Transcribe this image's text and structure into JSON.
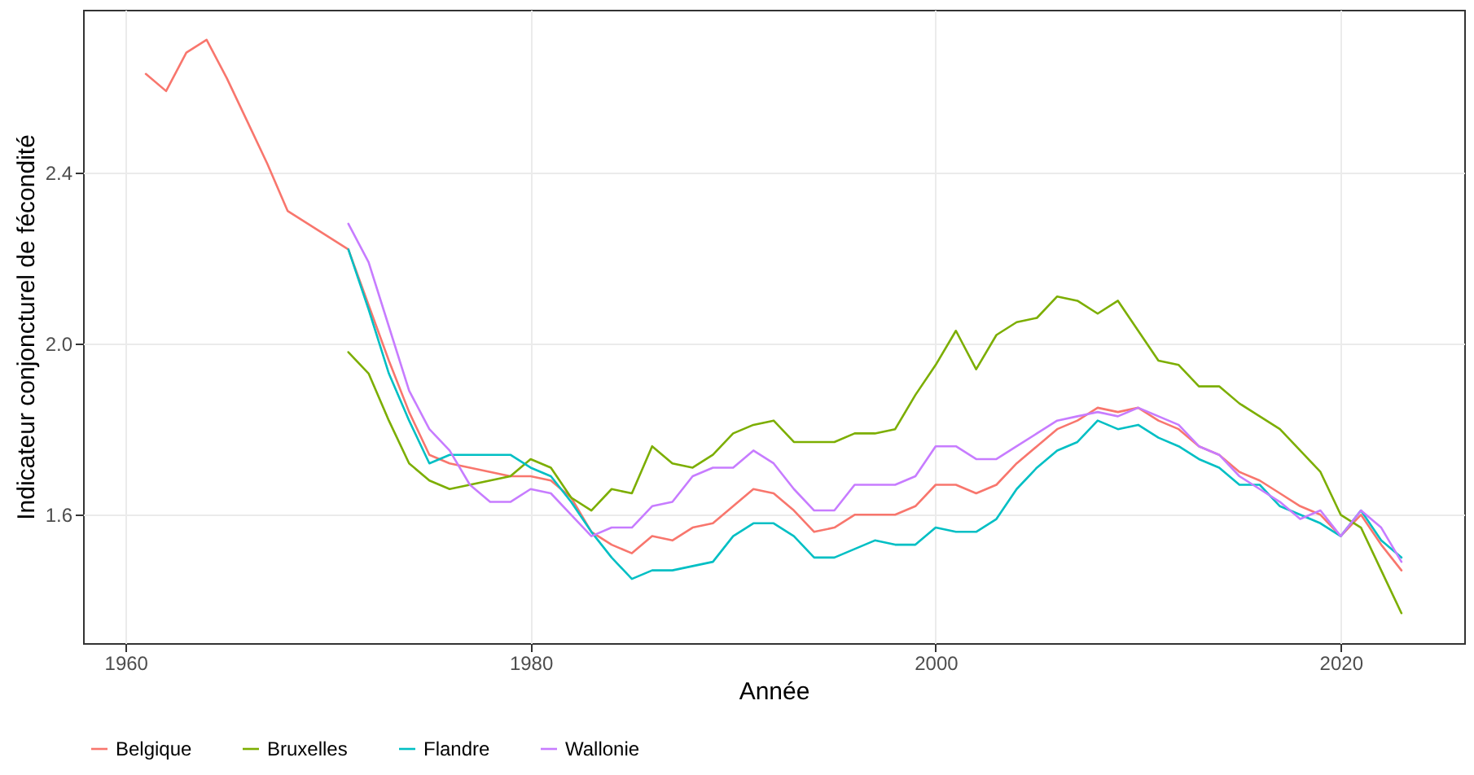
{
  "chart_data": {
    "type": "line",
    "xlabel": "Année",
    "ylabel": "Indicateur conjoncturel de fécondité",
    "xlim": [
      1957.9,
      2026.1
    ],
    "xticks": [
      1960,
      1980,
      2000,
      2020
    ],
    "ylim": [
      1.3,
      2.78
    ],
    "yticks": [
      1.6,
      {
        "value": 2,
        "label": "2.0"
      },
      2.4
    ],
    "grid": true,
    "legend": "bottom",
    "series": [
      {
        "name": "Belgique",
        "color": "#f8766d",
        "x": [
          1961,
          1962,
          1963,
          1964,
          1965,
          1966,
          1967,
          1968,
          1969,
          1970,
          1971,
          1972,
          1973,
          1974,
          1975,
          1976,
          1977,
          1978,
          1979,
          1980,
          1981,
          1982,
          1983,
          1984,
          1985,
          1986,
          1987,
          1988,
          1989,
          1990,
          1991,
          1992,
          1993,
          1994,
          1995,
          1996,
          1997,
          1998,
          1999,
          2000,
          2001,
          2002,
          2003,
          2004,
          2005,
          2006,
          2007,
          2008,
          2009,
          2010,
          2011,
          2012,
          2013,
          2014,
          2015,
          2016,
          2017,
          2018,
          2019,
          2020,
          2021,
          2022,
          2023
        ],
        "values": [
          2.63,
          2.59,
          2.68,
          2.71,
          2.62,
          2.52,
          2.42,
          2.31,
          2.28,
          2.25,
          2.22,
          2.09,
          1.96,
          1.84,
          1.74,
          1.72,
          1.71,
          1.7,
          1.69,
          1.69,
          1.68,
          1.64,
          1.56,
          1.53,
          1.51,
          1.55,
          1.54,
          1.57,
          1.58,
          1.62,
          1.66,
          1.65,
          1.61,
          1.56,
          1.57,
          1.6,
          1.6,
          1.6,
          1.62,
          1.67,
          1.67,
          1.65,
          1.67,
          1.72,
          1.76,
          1.8,
          1.82,
          1.85,
          1.84,
          1.85,
          1.82,
          1.8,
          1.76,
          1.74,
          1.7,
          1.68,
          1.65,
          1.62,
          1.6,
          1.55,
          1.6,
          1.53,
          1.47
        ]
      },
      {
        "name": "Bruxelles",
        "color": "#7cae00",
        "x": [
          1971,
          1972,
          1973,
          1974,
          1975,
          1976,
          1977,
          1978,
          1979,
          1980,
          1981,
          1982,
          1983,
          1984,
          1985,
          1986,
          1987,
          1988,
          1989,
          1990,
          1991,
          1992,
          1993,
          1994,
          1995,
          1996,
          1997,
          1998,
          1999,
          2000,
          2001,
          2002,
          2003,
          2004,
          2005,
          2006,
          2007,
          2008,
          2009,
          2010,
          2011,
          2012,
          2013,
          2014,
          2015,
          2016,
          2017,
          2018,
          2019,
          2020,
          2021,
          2022,
          2023
        ],
        "values": [
          1.98,
          1.93,
          1.82,
          1.72,
          1.68,
          1.66,
          1.67,
          1.68,
          1.69,
          1.73,
          1.71,
          1.64,
          1.61,
          1.66,
          1.65,
          1.76,
          1.72,
          1.71,
          1.74,
          1.79,
          1.81,
          1.82,
          1.77,
          1.77,
          1.77,
          1.79,
          1.79,
          1.8,
          1.88,
          1.95,
          2.03,
          1.94,
          2.02,
          2.05,
          2.06,
          2.11,
          2.1,
          2.07,
          2.1,
          2.03,
          1.96,
          1.95,
          1.9,
          1.9,
          1.86,
          1.83,
          1.8,
          1.75,
          1.7,
          1.6,
          1.57,
          1.47,
          1.37
        ]
      },
      {
        "name": "Flandre",
        "color": "#00bfc4",
        "x": [
          1971,
          1972,
          1973,
          1974,
          1975,
          1976,
          1977,
          1978,
          1979,
          1980,
          1981,
          1982,
          1983,
          1984,
          1985,
          1986,
          1987,
          1988,
          1989,
          1990,
          1991,
          1992,
          1993,
          1994,
          1995,
          1996,
          1997,
          1998,
          1999,
          2000,
          2001,
          2002,
          2003,
          2004,
          2005,
          2006,
          2007,
          2008,
          2009,
          2010,
          2011,
          2012,
          2013,
          2014,
          2015,
          2016,
          2017,
          2018,
          2019,
          2020,
          2021,
          2022,
          2023
        ],
        "values": [
          2.22,
          2.08,
          1.93,
          1.82,
          1.72,
          1.74,
          1.74,
          1.74,
          1.74,
          1.71,
          1.69,
          1.63,
          1.56,
          1.5,
          1.45,
          1.47,
          1.47,
          1.48,
          1.49,
          1.55,
          1.58,
          1.58,
          1.55,
          1.5,
          1.5,
          1.52,
          1.54,
          1.53,
          1.53,
          1.57,
          1.56,
          1.56,
          1.59,
          1.66,
          1.71,
          1.75,
          1.77,
          1.82,
          1.8,
          1.81,
          1.78,
          1.76,
          1.73,
          1.71,
          1.67,
          1.67,
          1.62,
          1.6,
          1.58,
          1.55,
          1.61,
          1.54,
          1.5
        ]
      },
      {
        "name": "Wallonie",
        "color": "#c77cff",
        "x": [
          1971,
          1972,
          1973,
          1974,
          1975,
          1976,
          1977,
          1978,
          1979,
          1980,
          1981,
          1982,
          1983,
          1984,
          1985,
          1986,
          1987,
          1988,
          1989,
          1990,
          1991,
          1992,
          1993,
          1994,
          1995,
          1996,
          1997,
          1998,
          1999,
          2000,
          2001,
          2002,
          2003,
          2004,
          2005,
          2006,
          2007,
          2008,
          2009,
          2010,
          2011,
          2012,
          2013,
          2014,
          2015,
          2016,
          2017,
          2018,
          2019,
          2020,
          2021,
          2022,
          2023
        ],
        "values": [
          2.28,
          2.19,
          2.04,
          1.89,
          1.8,
          1.75,
          1.67,
          1.63,
          1.63,
          1.66,
          1.65,
          1.6,
          1.55,
          1.57,
          1.57,
          1.62,
          1.63,
          1.69,
          1.71,
          1.71,
          1.75,
          1.72,
          1.66,
          1.61,
          1.61,
          1.67,
          1.67,
          1.67,
          1.69,
          1.76,
          1.76,
          1.73,
          1.73,
          1.76,
          1.79,
          1.82,
          1.83,
          1.84,
          1.83,
          1.85,
          1.83,
          1.81,
          1.76,
          1.74,
          1.69,
          1.66,
          1.63,
          1.59,
          1.61,
          1.55,
          1.61,
          1.57,
          1.49
        ]
      }
    ]
  }
}
